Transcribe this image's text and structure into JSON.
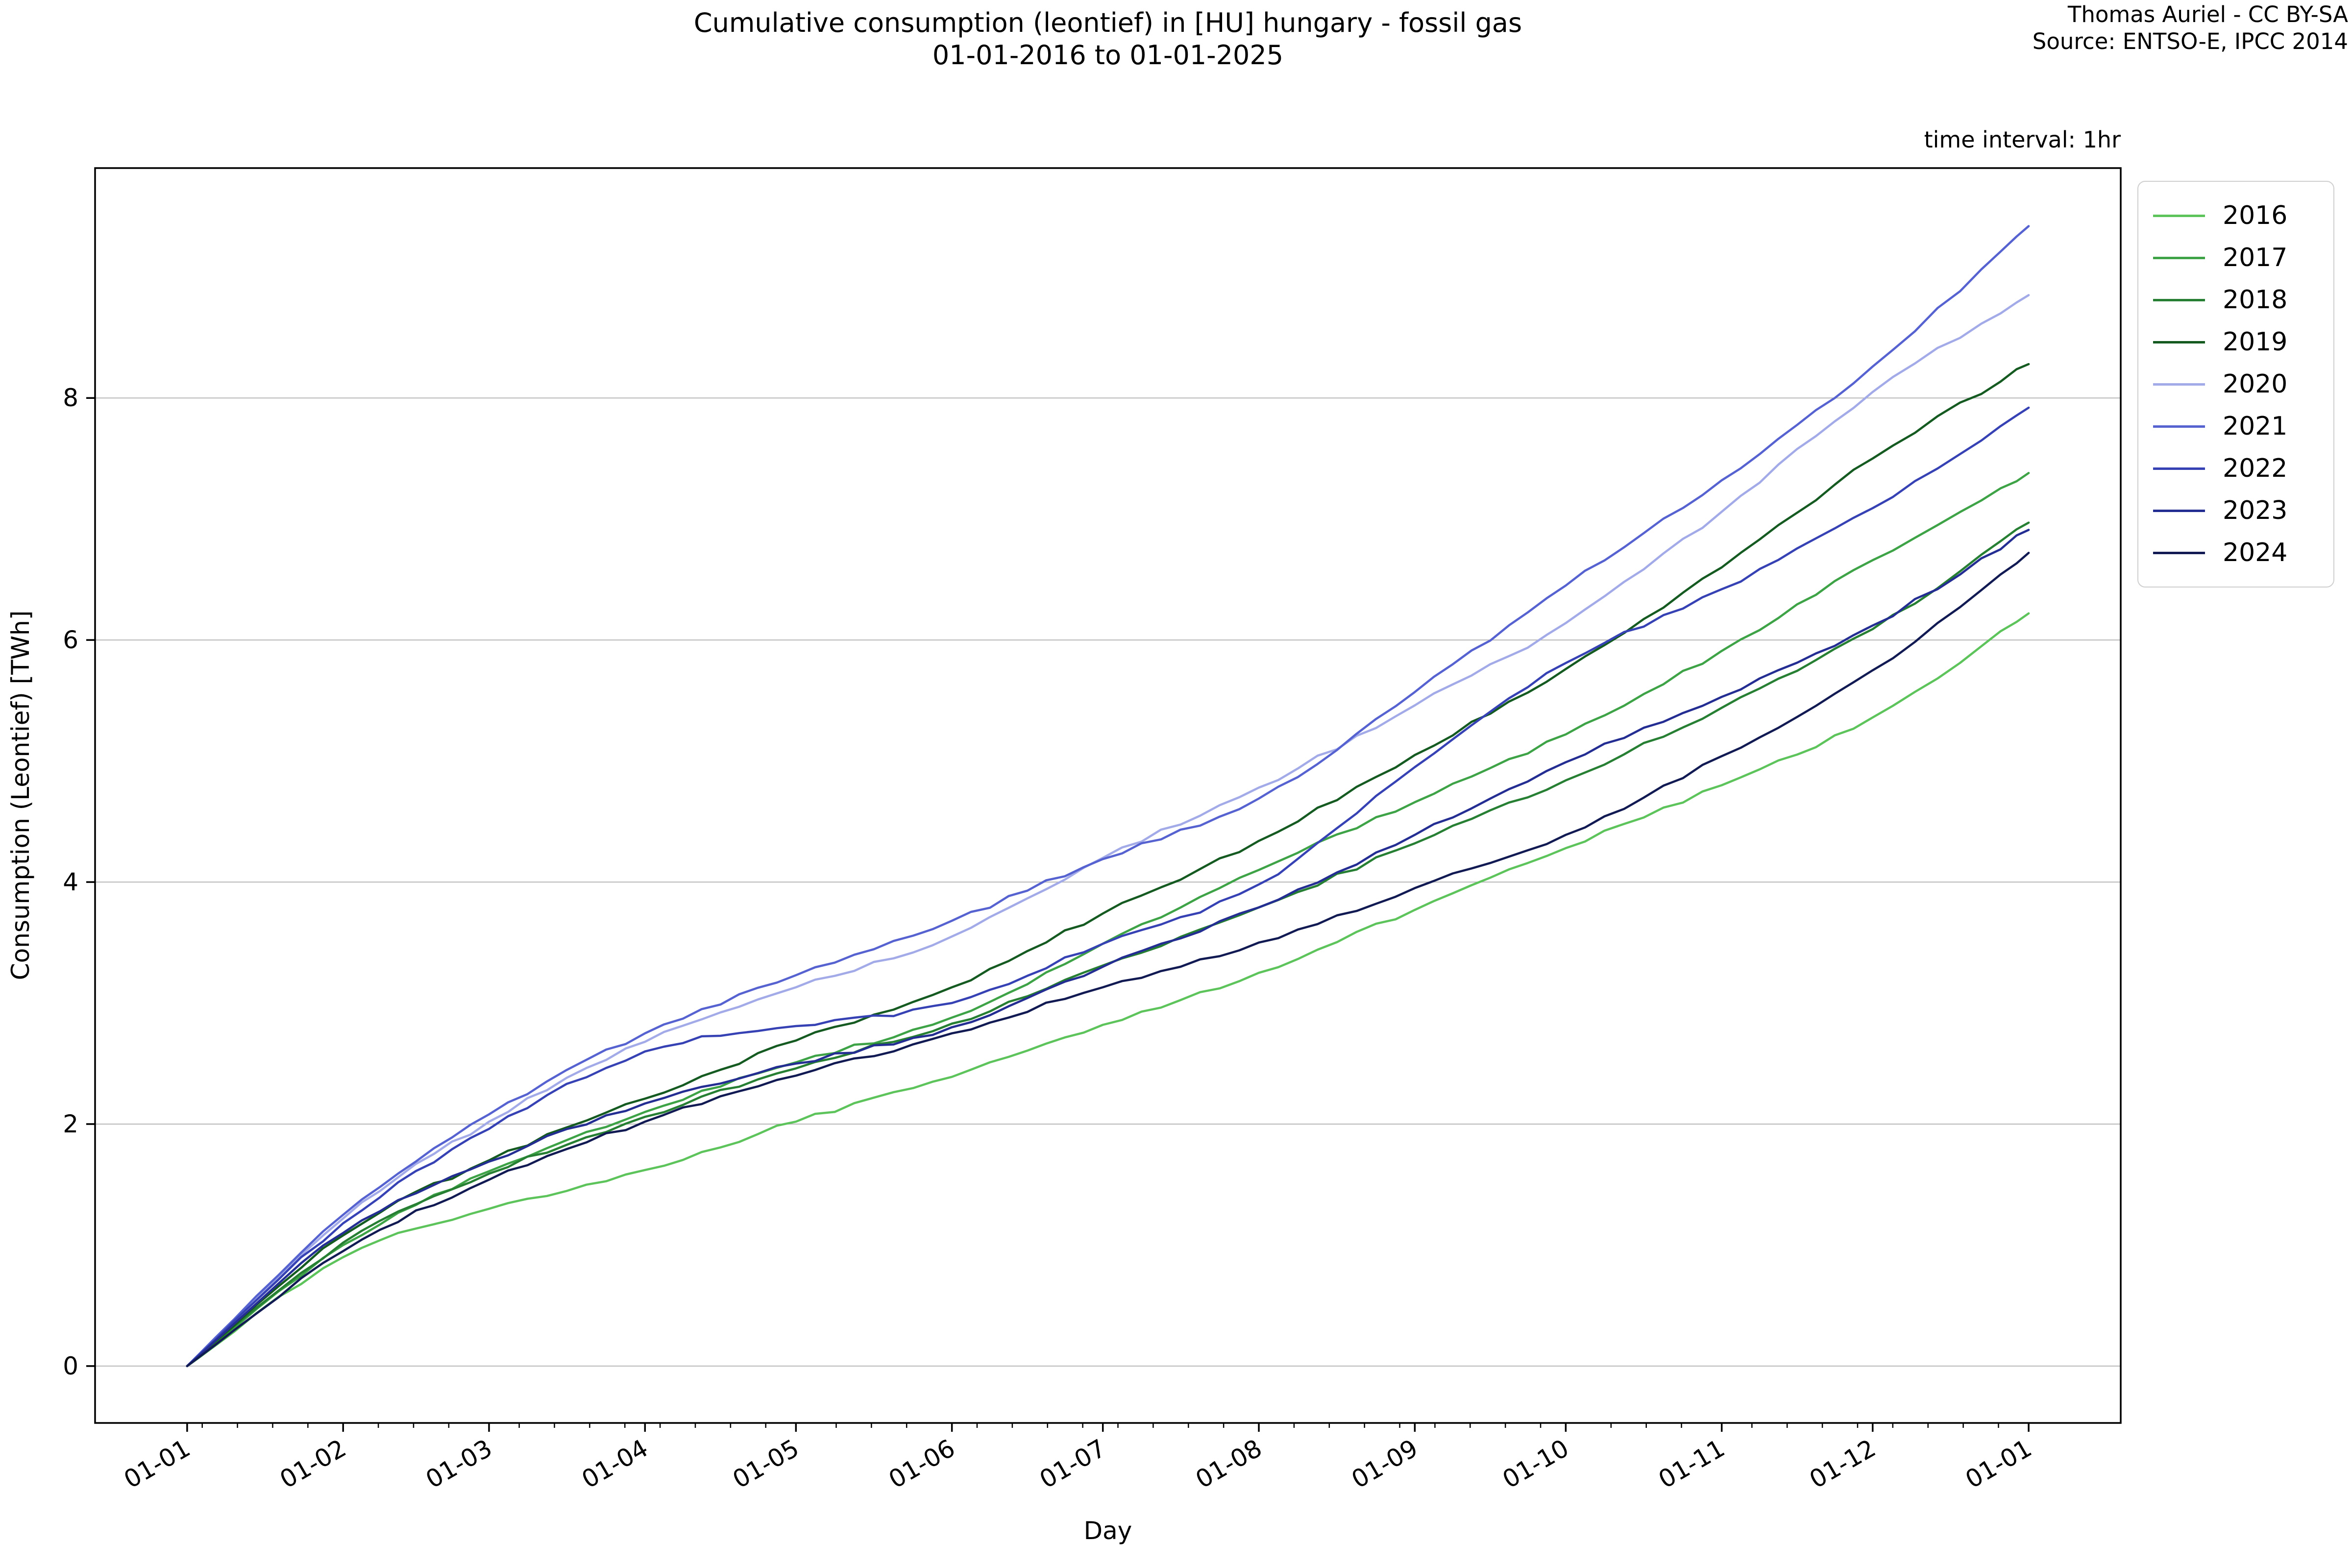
{
  "header": {
    "title_line1": "Cumulative consumption (leontief) in [HU] hungary - fossil gas",
    "title_line2": "01-01-2016 to 01-01-2025",
    "credit_line1": "Thomas Auriel - CC BY-SA",
    "credit_line2": "Source: ENTSO-E, IPCC 2014",
    "interval_note": "time interval: 1hr"
  },
  "chart_data": {
    "type": "line",
    "title": "Cumulative consumption (leontief) in [HU] hungary - fossil gas 01-01-2016 to 01-01-2025",
    "xlabel": "Day",
    "ylabel": "Consumption (Leontief) [TWh]",
    "legend_position": "outside upper right",
    "grid": "horizontal only",
    "x_axis": {
      "tick_labels": [
        "01-01",
        "01-02",
        "01-03",
        "01-04",
        "01-05",
        "01-06",
        "01-07",
        "01-08",
        "01-09",
        "01-10",
        "01-11",
        "01-12",
        "01-01"
      ],
      "tick_days": [
        0,
        31,
        60,
        91,
        121,
        152,
        182,
        213,
        244,
        274,
        305,
        335,
        366
      ],
      "xlim_days": [
        -18.3,
        384.3
      ],
      "minor_ticks": "weekly"
    },
    "y_axis": {
      "ticks": [
        0,
        2,
        4,
        6,
        8
      ],
      "ylim": [
        -0.47,
        9.9
      ]
    },
    "x_days": [
      0,
      31,
      60,
      91,
      121,
      152,
      182,
      213,
      244,
      274,
      305,
      335,
      366
    ],
    "series": [
      {
        "name": "2016",
        "color": "#5dc35b",
        "values": [
          0,
          0.9,
          1.3,
          1.62,
          2.02,
          2.39,
          2.82,
          3.25,
          3.77,
          4.28,
          4.8,
          5.36,
          6.22
        ]
      },
      {
        "name": "2017",
        "color": "#3da346",
        "values": [
          0,
          1.0,
          1.61,
          2.1,
          2.51,
          2.88,
          3.49,
          4.1,
          4.66,
          5.22,
          5.91,
          6.66,
          7.38
        ]
      },
      {
        "name": "2018",
        "color": "#267f33",
        "values": [
          0,
          1.02,
          1.59,
          2.06,
          2.46,
          2.83,
          3.31,
          3.79,
          4.32,
          4.84,
          5.44,
          6.09,
          6.97
        ]
      },
      {
        "name": "2019",
        "color": "#145a21",
        "values": [
          0,
          1.08,
          1.7,
          2.21,
          2.69,
          3.13,
          3.74,
          4.34,
          5.05,
          5.76,
          6.6,
          7.5,
          8.28
        ]
      },
      {
        "name": "2020",
        "color": "#a3aae8",
        "values": [
          0,
          1.22,
          2.02,
          2.68,
          3.13,
          3.55,
          4.2,
          4.78,
          5.46,
          6.14,
          7.06,
          8.05,
          8.85
        ]
      },
      {
        "name": "2021",
        "color": "#5562d0",
        "values": [
          0,
          1.25,
          2.08,
          2.75,
          3.23,
          3.68,
          4.19,
          4.69,
          5.57,
          6.45,
          7.32,
          8.26,
          9.42
        ]
      },
      {
        "name": "2022",
        "color": "#3642b4",
        "values": [
          0,
          1.18,
          1.96,
          2.6,
          2.81,
          3.0,
          3.49,
          3.98,
          4.95,
          5.81,
          6.42,
          7.09,
          7.92
        ]
      },
      {
        "name": "2023",
        "color": "#232d92",
        "values": [
          0,
          1.1,
          1.69,
          2.17,
          2.5,
          2.8,
          3.3,
          3.79,
          4.39,
          4.99,
          5.53,
          6.12,
          6.91
        ]
      },
      {
        "name": "2024",
        "color": "#111a52",
        "values": [
          0,
          0.95,
          1.54,
          2.02,
          2.4,
          2.75,
          3.13,
          3.5,
          3.95,
          4.39,
          5.04,
          5.75,
          6.72
        ]
      }
    ]
  },
  "style": {
    "spine_color": "#000000",
    "grid_color": "#b8b8b8",
    "background": "#ffffff"
  }
}
